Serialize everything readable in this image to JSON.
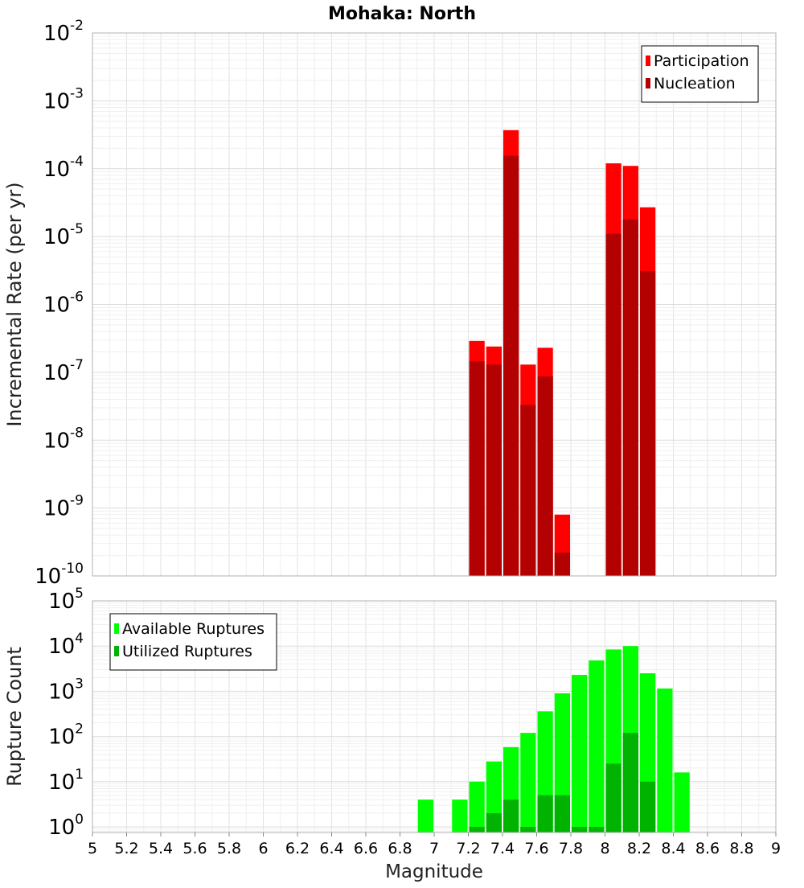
{
  "title": "Mohaka: North",
  "chart_data": [
    {
      "type": "bar",
      "scale": "log",
      "ylabel": "Incremental Rate (per yr)",
      "xlim": [
        5,
        9
      ],
      "ylim": [
        1e-10,
        0.01
      ],
      "y_exponents": [
        -10,
        -9,
        -8,
        -7,
        -6,
        -5,
        -4,
        -3,
        -2
      ],
      "grid": true,
      "legend_position": "top-right",
      "bin_width": 0.1,
      "x": [
        7.25,
        7.35,
        7.45,
        7.55,
        7.65,
        7.75,
        8.05,
        8.15,
        8.25
      ],
      "series": [
        {
          "name": "Participation",
          "color": "#ff0000",
          "values": [
            2.9e-07,
            2.4e-07,
            0.00037,
            1.3e-07,
            2.3e-07,
            8e-10,
            0.00012,
            0.00011,
            2.7e-05
          ]
        },
        {
          "name": "Nucleation",
          "color": "#b30000",
          "values": [
            1.45e-07,
            1.3e-07,
            0.000155,
            3.3e-08,
            8.7e-08,
            2.2e-10,
            1.1e-05,
            1.8e-05,
            3.1e-06
          ]
        }
      ]
    },
    {
      "type": "bar",
      "scale": "log",
      "xlabel": "Magnitude",
      "ylabel": "Rupture Count",
      "xlim": [
        5,
        9
      ],
      "ylim": [
        0.75,
        100000.0
      ],
      "y_exponents": [
        0,
        1,
        2,
        3,
        4,
        5
      ],
      "grid": true,
      "legend_position": "top-left",
      "bin_width": 0.1,
      "x_ticks": [
        "5",
        "5.2",
        "5.4",
        "5.6",
        "5.8",
        "6",
        "6.2",
        "6.4",
        "6.6",
        "6.8",
        "7",
        "7.2",
        "7.4",
        "7.6",
        "7.8",
        "8",
        "8.2",
        "8.4",
        "8.6",
        "8.8",
        "9"
      ],
      "series": [
        {
          "name": "Available Ruptures",
          "color": "#00ff00",
          "x": [
            6.95,
            7.15,
            7.25,
            7.35,
            7.45,
            7.55,
            7.65,
            7.75,
            7.85,
            7.95,
            8.05,
            8.15,
            8.25,
            8.35,
            8.45
          ],
          "values": [
            4,
            4,
            10,
            28,
            58,
            120,
            360,
            900,
            2300,
            4800,
            8400,
            10000,
            2500,
            1150,
            16
          ]
        },
        {
          "name": "Utilized Ruptures",
          "color": "#00b300",
          "x": [
            7.25,
            7.35,
            7.45,
            7.55,
            7.65,
            7.75,
            7.85,
            7.95,
            8.05,
            8.15,
            8.25
          ],
          "values": [
            1,
            2,
            4,
            1,
            5,
            5,
            1,
            1,
            25,
            120,
            10
          ]
        }
      ]
    }
  ]
}
